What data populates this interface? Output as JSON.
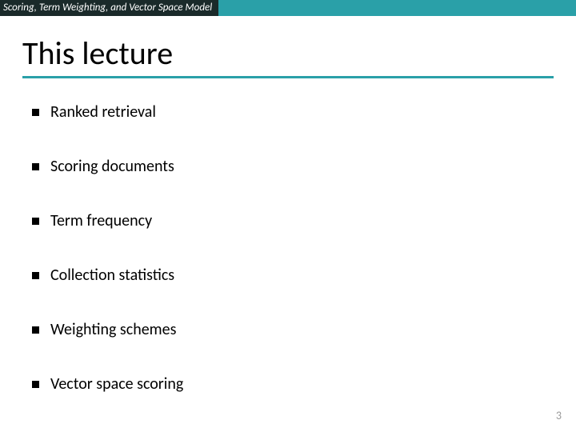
{
  "header": {
    "label": "Scoring, Term Weighting, and Vector Space Model",
    "left_bg": "#1a2a2a",
    "right_bg": "#2aa0a8"
  },
  "title": {
    "text": "This lecture",
    "underline_color": "#2aa0a8"
  },
  "bullets": [
    {
      "text": "Ranked retrieval"
    },
    {
      "text": "Scoring documents"
    },
    {
      "text": "Term frequency"
    },
    {
      "text": "Collection statistics"
    },
    {
      "text": "Weighting schemes"
    },
    {
      "text": "Vector space scoring"
    }
  ],
  "page_number": "3",
  "colors": {
    "bg": "#ffffff",
    "text": "#000000",
    "bullet_marker": "#000000",
    "page_num": "#9a9a9a"
  }
}
